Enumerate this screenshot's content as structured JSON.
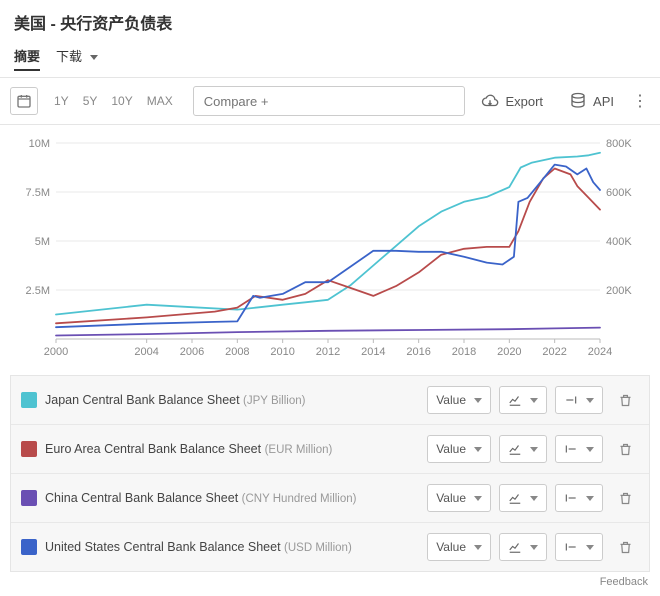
{
  "page_title": "美国 - 央行资产负债表",
  "tabs": {
    "summary": "摘要",
    "download": "下载"
  },
  "toolbar": {
    "ranges": [
      "1Y",
      "5Y",
      "10Y",
      "MAX"
    ],
    "compare_placeholder": "Compare +",
    "export": "Export",
    "api": "API"
  },
  "chart": {
    "type": "line",
    "background": "#ffffff",
    "grid_color": "#e8e8e8",
    "axis_color": "#bbbbbb",
    "tick_font_size": 11,
    "x": {
      "min": 2000,
      "max": 2024,
      "ticks": [
        2000,
        2004,
        2006,
        2008,
        2010,
        2012,
        2014,
        2016,
        2018,
        2020,
        2022,
        2024
      ]
    },
    "y_left": {
      "min": 0,
      "max": 10000000,
      "ticks": [
        2500000,
        5000000,
        7500000,
        10000000
      ],
      "tick_labels": [
        "2.5M",
        "5M",
        "7.5M",
        "10M"
      ]
    },
    "y_right": {
      "min": 0,
      "max": 800000,
      "ticks": [
        200000,
        400000,
        600000,
        800000
      ],
      "tick_labels": [
        "200K",
        "400K",
        "600K",
        "800K"
      ]
    },
    "series": [
      {
        "id": "japan",
        "axis": "right",
        "color": "#4ec3d1",
        "width": 1.8,
        "points": [
          [
            2000,
            100000
          ],
          [
            2002,
            120000
          ],
          [
            2004,
            140000
          ],
          [
            2006,
            130000
          ],
          [
            2008,
            120000
          ],
          [
            2009,
            130000
          ],
          [
            2010,
            140000
          ],
          [
            2011,
            150000
          ],
          [
            2012,
            160000
          ],
          [
            2013,
            220000
          ],
          [
            2014,
            300000
          ],
          [
            2015,
            380000
          ],
          [
            2016,
            460000
          ],
          [
            2017,
            520000
          ],
          [
            2018,
            560000
          ],
          [
            2019,
            580000
          ],
          [
            2020,
            620000
          ],
          [
            2020.5,
            700000
          ],
          [
            2021,
            720000
          ],
          [
            2022,
            740000
          ],
          [
            2023,
            745000
          ],
          [
            2023.5,
            750000
          ],
          [
            2024,
            760000
          ]
        ]
      },
      {
        "id": "euro",
        "axis": "left",
        "color": "#b84b4b",
        "width": 1.8,
        "points": [
          [
            2000,
            800000
          ],
          [
            2004,
            1100000
          ],
          [
            2007,
            1400000
          ],
          [
            2008,
            1600000
          ],
          [
            2008.8,
            2200000
          ],
          [
            2010,
            2000000
          ],
          [
            2011,
            2300000
          ],
          [
            2012,
            3000000
          ],
          [
            2013,
            2600000
          ],
          [
            2014,
            2200000
          ],
          [
            2015,
            2700000
          ],
          [
            2016,
            3400000
          ],
          [
            2017,
            4300000
          ],
          [
            2018,
            4600000
          ],
          [
            2019,
            4700000
          ],
          [
            2020,
            4700000
          ],
          [
            2020.4,
            5500000
          ],
          [
            2020.9,
            7000000
          ],
          [
            2021.5,
            8200000
          ],
          [
            2022,
            8700000
          ],
          [
            2022.7,
            8400000
          ],
          [
            2023,
            7800000
          ],
          [
            2023.5,
            7200000
          ],
          [
            2024,
            6600000
          ]
        ]
      },
      {
        "id": "china",
        "axis": "left",
        "color": "#6a4fb3",
        "width": 1.8,
        "points": [
          [
            2000,
            180000
          ],
          [
            2004,
            250000
          ],
          [
            2008,
            350000
          ],
          [
            2012,
            420000
          ],
          [
            2016,
            460000
          ],
          [
            2020,
            500000
          ],
          [
            2022,
            540000
          ],
          [
            2024,
            580000
          ]
        ]
      },
      {
        "id": "us",
        "axis": "left",
        "color": "#3a63c9",
        "width": 1.8,
        "points": [
          [
            2000,
            600000
          ],
          [
            2004,
            780000
          ],
          [
            2007,
            870000
          ],
          [
            2008,
            900000
          ],
          [
            2008.7,
            2200000
          ],
          [
            2009,
            2100000
          ],
          [
            2010,
            2300000
          ],
          [
            2011,
            2900000
          ],
          [
            2012,
            2900000
          ],
          [
            2013,
            3700000
          ],
          [
            2014,
            4500000
          ],
          [
            2015,
            4500000
          ],
          [
            2016,
            4450000
          ],
          [
            2017,
            4450000
          ],
          [
            2018,
            4200000
          ],
          [
            2019,
            3900000
          ],
          [
            2019.7,
            3800000
          ],
          [
            2020.2,
            4200000
          ],
          [
            2020.4,
            7000000
          ],
          [
            2020.8,
            7200000
          ],
          [
            2021.3,
            7900000
          ],
          [
            2022,
            8900000
          ],
          [
            2022.5,
            8800000
          ],
          [
            2023,
            8400000
          ],
          [
            2023.4,
            8700000
          ],
          [
            2023.7,
            8000000
          ],
          [
            2024,
            7600000
          ]
        ]
      }
    ]
  },
  "legend": {
    "value_label": "Value",
    "items": [
      {
        "color": "#4ec3d1",
        "label": "Japan Central Bank Balance Sheet",
        "unit": "(JPY Billion)",
        "line_style": "right"
      },
      {
        "color": "#b84b4b",
        "label": "Euro Area Central Bank Balance Sheet",
        "unit": "(EUR Million)",
        "line_style": "left"
      },
      {
        "color": "#6a4fb3",
        "label": "China Central Bank Balance Sheet",
        "unit": "(CNY Hundred Million)",
        "line_style": "left"
      },
      {
        "color": "#3a63c9",
        "label": "United States Central Bank Balance Sheet",
        "unit": "(USD Million)",
        "line_style": "left"
      }
    ]
  },
  "feedback": "Feedback"
}
